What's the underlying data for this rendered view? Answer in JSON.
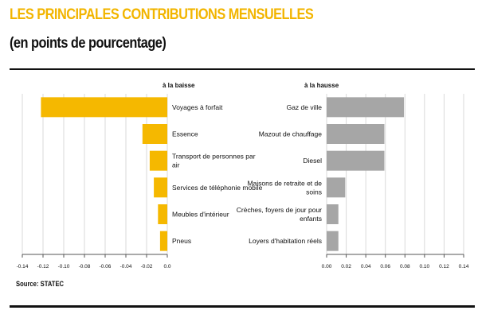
{
  "header": {
    "title": "LES PRINCIPALES CONTRIBUTIONS MENSUELLES",
    "subtitle": "(en points de pourcentage)"
  },
  "footer": {
    "source": "Source: STATEC"
  },
  "colors": {
    "baisse": "#f5b800",
    "hausse": "#a6a6a6",
    "grid": "#d9d9d9",
    "axis": "#555555"
  },
  "chart_data": [
    {
      "type": "bar",
      "orientation": "horizontal",
      "title": "à la baisse",
      "categories": [
        "Voyages à forfait",
        "Essence",
        "Transport de personnes par air",
        "Services de téléphonie mobile",
        "Meubles d'intérieur",
        "Pneus"
      ],
      "category_lines": [
        [
          "Voyages à forfait"
        ],
        [
          "Essence"
        ],
        [
          "Transport de personnes par",
          "air"
        ],
        [
          "Services de téléphonie mobile"
        ],
        [
          "Meubles d'intérieur"
        ],
        [
          "Pneus"
        ]
      ],
      "values": [
        -0.122,
        -0.024,
        -0.017,
        -0.013,
        -0.009,
        -0.007
      ],
      "xlim": [
        -0.14,
        0.0
      ],
      "ticks": [
        -0.14,
        -0.12,
        -0.1,
        -0.08,
        -0.06,
        -0.04,
        -0.02,
        0.0
      ],
      "tick_labels": [
        "-0.14",
        "-0.12",
        "-0.10",
        "-0.08",
        "-0.06",
        "-0.04",
        "-0.02",
        "0.0"
      ],
      "grid": true
    },
    {
      "type": "bar",
      "orientation": "horizontal",
      "title": "à la hausse",
      "categories": [
        "Gaz de ville",
        "Mazout de chauffage",
        "Diesel",
        "Maisons de retraite et de soins",
        "Crèches, foyers de jour pour enfants",
        "Loyers d'habitation réels"
      ],
      "category_lines": [
        [
          "Gaz de ville"
        ],
        [
          "Mazout de chauffage"
        ],
        [
          "Diesel"
        ],
        [
          "Maisons de retraite et de",
          "soins"
        ],
        [
          "Crèches, foyers de jour pour",
          "enfants"
        ],
        [
          "Loyers d'habitation réels"
        ]
      ],
      "values": [
        0.079,
        0.059,
        0.059,
        0.019,
        0.012,
        0.012
      ],
      "xlim": [
        0.0,
        0.14
      ],
      "ticks": [
        0.0,
        0.02,
        0.04,
        0.06,
        0.08,
        0.1,
        0.12,
        0.14
      ],
      "tick_labels": [
        "0.00",
        "0.02",
        "0.04",
        "0.06",
        "0.08",
        "0.10",
        "0.12",
        "0.14"
      ],
      "grid": true
    }
  ]
}
